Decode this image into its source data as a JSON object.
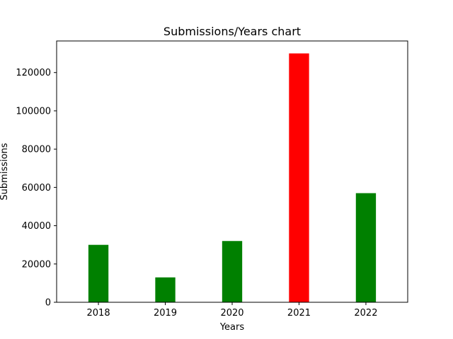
{
  "chart_data": {
    "type": "bar",
    "title": "Submissions/Years chart",
    "xlabel": "Years",
    "ylabel": "Submissions",
    "categories": [
      "2018",
      "2019",
      "2020",
      "2021",
      "2022"
    ],
    "values": [
      30000,
      13000,
      32000,
      130000,
      57000
    ],
    "colors": [
      "#008000",
      "#008000",
      "#008000",
      "#ff0000",
      "#008000"
    ],
    "ylim": [
      0,
      136500
    ],
    "yticks": [
      0,
      20000,
      40000,
      60000,
      80000,
      100000,
      120000
    ],
    "ytick_labels": [
      "0",
      "20000",
      "40000",
      "60000",
      "80000",
      "100000",
      "120000"
    ],
    "grid": false,
    "legend": "none"
  }
}
